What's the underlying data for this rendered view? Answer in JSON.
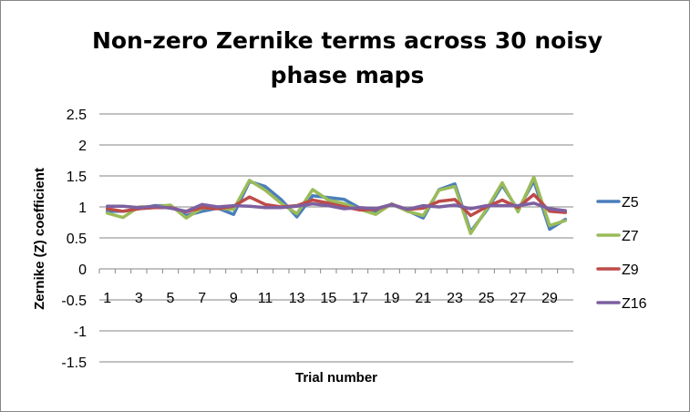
{
  "chart_data": {
    "type": "line",
    "title_lines": [
      "Non-zero Zernike terms across 30 noisy",
      "phase maps"
    ],
    "xlabel": "Trial number",
    "ylabel": "Zernike (Z)  coefficient",
    "ylim": [
      -1.5,
      2.5
    ],
    "ystep": 0.5,
    "ytick_labels": [
      "2.5",
      "2",
      "1.5",
      "1",
      "0.5",
      "0",
      "-0.5",
      "-1",
      "-1.5"
    ],
    "x": [
      1,
      2,
      3,
      4,
      5,
      6,
      7,
      8,
      9,
      10,
      11,
      12,
      13,
      14,
      15,
      16,
      17,
      18,
      19,
      20,
      21,
      22,
      23,
      24,
      25,
      26,
      27,
      28,
      29,
      30
    ],
    "xtick_labels": [
      "1",
      "3",
      "5",
      "7",
      "9",
      "11",
      "13",
      "15",
      "17",
      "19",
      "21",
      "23",
      "25",
      "27",
      "29"
    ],
    "grid": "horizontal",
    "legend_position": "right",
    "series": [
      {
        "name": "Z5",
        "color": "#4a7ebb",
        "values": [
          0.93,
          0.93,
          0.97,
          1.02,
          1.02,
          0.86,
          0.93,
          0.98,
          0.88,
          1.41,
          1.33,
          1.12,
          0.84,
          1.18,
          1.15,
          1.12,
          0.98,
          0.91,
          1.04,
          0.94,
          0.82,
          1.28,
          1.37,
          0.6,
          0.94,
          1.35,
          0.95,
          1.42,
          0.64,
          0.8
        ]
      },
      {
        "name": "Z7",
        "color": "#9bbb59",
        "values": [
          0.9,
          0.83,
          1.0,
          1.0,
          1.03,
          0.82,
          0.98,
          0.98,
          0.96,
          1.43,
          1.27,
          1.06,
          0.89,
          1.28,
          1.11,
          1.05,
          0.96,
          0.88,
          1.05,
          0.93,
          0.86,
          1.27,
          1.33,
          0.57,
          0.96,
          1.39,
          0.92,
          1.48,
          0.7,
          0.78
        ]
      },
      {
        "name": "Z9",
        "color": "#be4b48",
        "values": [
          0.97,
          0.93,
          0.97,
          0.99,
          0.99,
          0.92,
          0.99,
          0.97,
          1.01,
          1.16,
          1.04,
          1.0,
          1.02,
          1.11,
          1.06,
          1.0,
          0.95,
          0.96,
          1.04,
          0.96,
          0.98,
          1.09,
          1.12,
          0.86,
          1.0,
          1.11,
          0.99,
          1.2,
          0.93,
          0.91
        ]
      },
      {
        "name": "Z16",
        "color": "#7d60a0",
        "values": [
          1.01,
          1.01,
          0.99,
          1.01,
          0.98,
          0.93,
          1.04,
          1.0,
          1.02,
          1.01,
          0.99,
          0.99,
          1.01,
          1.05,
          1.02,
          0.97,
          0.99,
          0.97,
          1.04,
          0.96,
          1.02,
          1.0,
          1.03,
          0.97,
          1.02,
          1.02,
          1.02,
          1.06,
          0.97,
          0.94
        ]
      }
    ]
  }
}
